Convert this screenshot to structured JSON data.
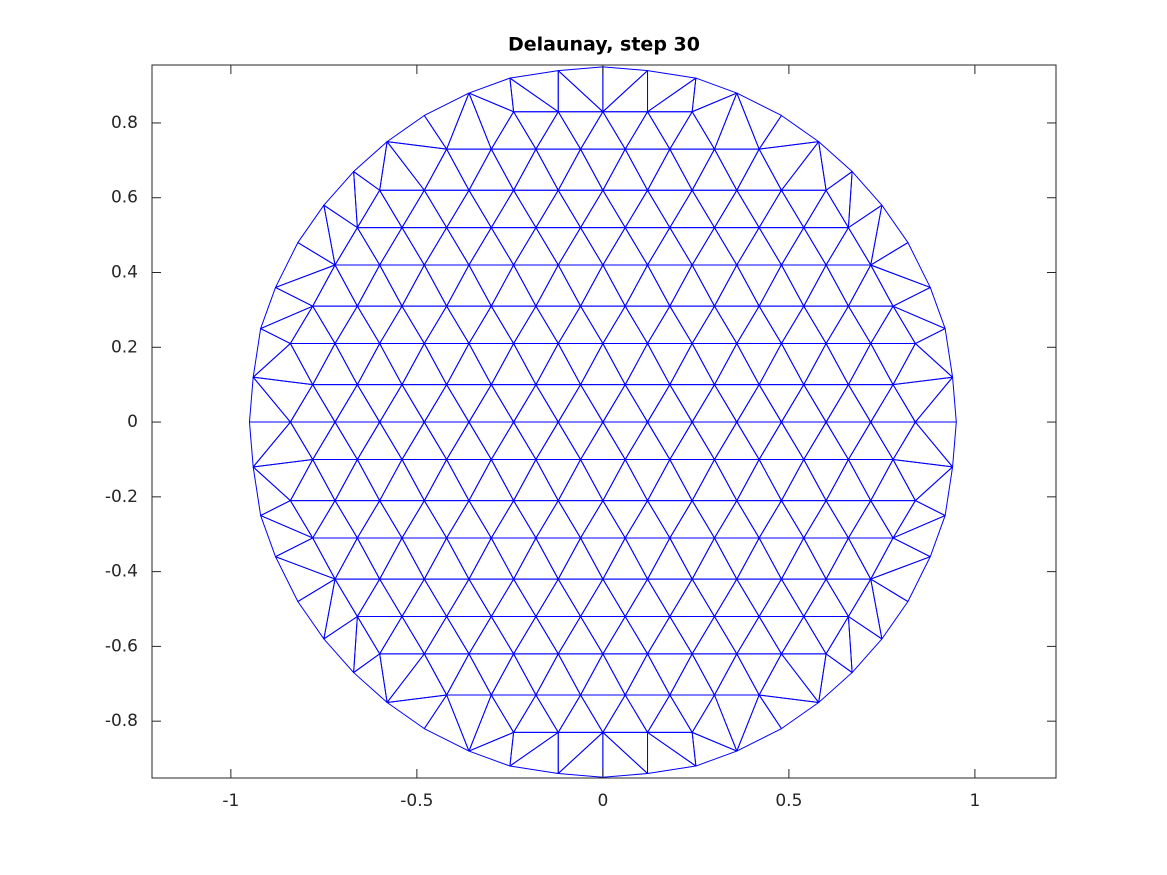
{
  "chart_data": {
    "type": "triangulation",
    "title": "Delaunay, step 30",
    "color": "#0000ff",
    "xlim": [
      -1.212,
      1.218
    ],
    "ylim": [
      -0.952,
      0.955
    ],
    "xticks": [
      -1,
      -0.5,
      0,
      0.5,
      1
    ],
    "yticks": [
      -0.8,
      -0.6,
      -0.4,
      -0.2,
      0,
      0.2,
      0.4,
      0.6,
      0.8
    ],
    "x": [
      -0.24,
      -0.12,
      0,
      0.12,
      0.24,
      -0.42,
      -0.3,
      -0.18,
      -0.06,
      0.06,
      0.18,
      0.3,
      0.42,
      -0.6,
      -0.48,
      -0.36,
      -0.24,
      -0.12,
      0,
      0.12,
      0.24,
      0.36,
      0.48,
      0.6,
      -0.66,
      -0.54,
      -0.42,
      -0.3,
      -0.18,
      -0.06,
      0.06,
      0.18,
      0.3,
      0.42,
      0.54,
      0.66,
      -0.72,
      -0.6,
      -0.48,
      -0.36,
      -0.24,
      -0.12,
      0,
      0.12,
      0.24,
      0.36,
      0.48,
      0.6,
      0.72,
      -0.78,
      -0.66,
      -0.54,
      -0.42,
      -0.3,
      -0.18,
      -0.06,
      0.06,
      0.18,
      0.3,
      0.42,
      0.54,
      0.66,
      0.78,
      -0.84,
      -0.72,
      -0.6,
      -0.48,
      -0.36,
      -0.24,
      -0.12,
      0,
      0.12,
      0.24,
      0.36,
      0.48,
      0.6,
      0.72,
      0.84,
      -0.78,
      -0.66,
      -0.54,
      -0.42,
      -0.3,
      -0.18,
      -0.06,
      0.06,
      0.18,
      0.3,
      0.42,
      0.54,
      0.66,
      0.78,
      -0.84,
      -0.72,
      -0.6,
      -0.48,
      -0.36,
      -0.24,
      -0.12,
      0,
      0.12,
      0.24,
      0.36,
      0.48,
      0.6,
      0.72,
      0.84,
      -0.78,
      -0.66,
      -0.54,
      -0.42,
      -0.3,
      -0.18,
      -0.06,
      0.06,
      0.18,
      0.3,
      0.42,
      0.54,
      0.66,
      0.78,
      -0.84,
      -0.72,
      -0.6,
      -0.48,
      -0.36,
      -0.24,
      -0.12,
      0,
      0.12,
      0.24,
      0.36,
      0.48,
      0.6,
      0.72,
      0.84,
      -0.78,
      -0.66,
      -0.54,
      -0.42,
      -0.3,
      -0.18,
      -0.06,
      0.06,
      0.18,
      0.3,
      0.42,
      0.54,
      0.66,
      0.78,
      -0.72,
      -0.6,
      -0.48,
      -0.36,
      -0.24,
      -0.12,
      0,
      0.12,
      0.24,
      0.36,
      0.48,
      0.6,
      0.72,
      -0.66,
      -0.54,
      -0.42,
      -0.3,
      -0.18,
      -0.06,
      0.06,
      0.18,
      0.3,
      0.42,
      0.54,
      0.66,
      -0.6,
      -0.48,
      -0.36,
      -0.24,
      -0.12,
      0,
      0.12,
      0.24,
      0.36,
      0.48,
      0.6,
      -0.42,
      -0.3,
      -0.18,
      -0.06,
      0.06,
      0.18,
      0.3,
      0.42,
      -0.24,
      -0.12,
      0,
      0.12,
      0.24,
      0.95,
      0.94,
      0.92,
      0.88,
      0.82,
      0.75,
      0.67,
      0.58,
      0.48,
      0.36,
      0.25,
      0.12,
      0,
      -0.12,
      -0.25,
      -0.36,
      -0.48,
      -0.58,
      -0.67,
      -0.75,
      -0.82,
      -0.88,
      -0.92,
      -0.94,
      -0.95,
      -0.94,
      -0.92,
      -0.88,
      -0.82,
      -0.75,
      -0.67,
      -0.58,
      -0.48,
      -0.36,
      -0.25,
      -0.12,
      0,
      0.12,
      0.25,
      0.36,
      0.48,
      0.58,
      0.67,
      0.75,
      0.82,
      0.88,
      0.92,
      0.94
    ],
    "y": [
      0.83,
      0.83,
      0.83,
      0.83,
      0.83,
      0.73,
      0.73,
      0.73,
      0.73,
      0.73,
      0.73,
      0.73,
      0.73,
      0.62,
      0.62,
      0.62,
      0.62,
      0.62,
      0.62,
      0.62,
      0.62,
      0.62,
      0.62,
      0.62,
      0.52,
      0.52,
      0.52,
      0.52,
      0.52,
      0.52,
      0.52,
      0.52,
      0.52,
      0.52,
      0.52,
      0.52,
      0.42,
      0.42,
      0.42,
      0.42,
      0.42,
      0.42,
      0.42,
      0.42,
      0.42,
      0.42,
      0.42,
      0.42,
      0.42,
      0.31,
      0.31,
      0.31,
      0.31,
      0.31,
      0.31,
      0.31,
      0.31,
      0.31,
      0.31,
      0.31,
      0.31,
      0.31,
      0.31,
      0.21,
      0.21,
      0.21,
      0.21,
      0.21,
      0.21,
      0.21,
      0.21,
      0.21,
      0.21,
      0.21,
      0.21,
      0.21,
      0.21,
      0.21,
      0.1,
      0.1,
      0.1,
      0.1,
      0.1,
      0.1,
      0.1,
      0.1,
      0.1,
      0.1,
      0.1,
      0.1,
      0.1,
      0.1,
      0,
      0,
      0,
      0,
      0,
      0,
      0,
      0,
      0,
      0,
      0,
      0,
      0,
      0,
      0,
      -0.1,
      -0.1,
      -0.1,
      -0.1,
      -0.1,
      -0.1,
      -0.1,
      -0.1,
      -0.1,
      -0.1,
      -0.1,
      -0.1,
      -0.1,
      -0.1,
      -0.21,
      -0.21,
      -0.21,
      -0.21,
      -0.21,
      -0.21,
      -0.21,
      -0.21,
      -0.21,
      -0.21,
      -0.21,
      -0.21,
      -0.21,
      -0.21,
      -0.21,
      -0.31,
      -0.31,
      -0.31,
      -0.31,
      -0.31,
      -0.31,
      -0.31,
      -0.31,
      -0.31,
      -0.31,
      -0.31,
      -0.31,
      -0.31,
      -0.31,
      -0.42,
      -0.42,
      -0.42,
      -0.42,
      -0.42,
      -0.42,
      -0.42,
      -0.42,
      -0.42,
      -0.42,
      -0.42,
      -0.42,
      -0.42,
      -0.52,
      -0.52,
      -0.52,
      -0.52,
      -0.52,
      -0.52,
      -0.52,
      -0.52,
      -0.52,
      -0.52,
      -0.52,
      -0.52,
      -0.62,
      -0.62,
      -0.62,
      -0.62,
      -0.62,
      -0.62,
      -0.62,
      -0.62,
      -0.62,
      -0.62,
      -0.62,
      -0.73,
      -0.73,
      -0.73,
      -0.73,
      -0.73,
      -0.73,
      -0.73,
      -0.73,
      -0.83,
      -0.83,
      -0.83,
      -0.83,
      -0.83,
      0,
      0.12,
      0.25,
      0.36,
      0.48,
      0.58,
      0.67,
      0.75,
      0.82,
      0.88,
      0.92,
      0.94,
      0.95,
      0.94,
      0.92,
      0.88,
      0.82,
      0.75,
      0.67,
      0.58,
      0.48,
      0.36,
      0.25,
      0.12,
      0,
      -0.12,
      -0.25,
      -0.36,
      -0.48,
      -0.58,
      -0.67,
      -0.75,
      -0.82,
      -0.88,
      -0.92,
      -0.94,
      -0.95,
      -0.94,
      -0.92,
      -0.88,
      -0.82,
      -0.75,
      -0.67,
      -0.58,
      -0.48,
      -0.36,
      -0.25,
      -0.12
    ]
  }
}
